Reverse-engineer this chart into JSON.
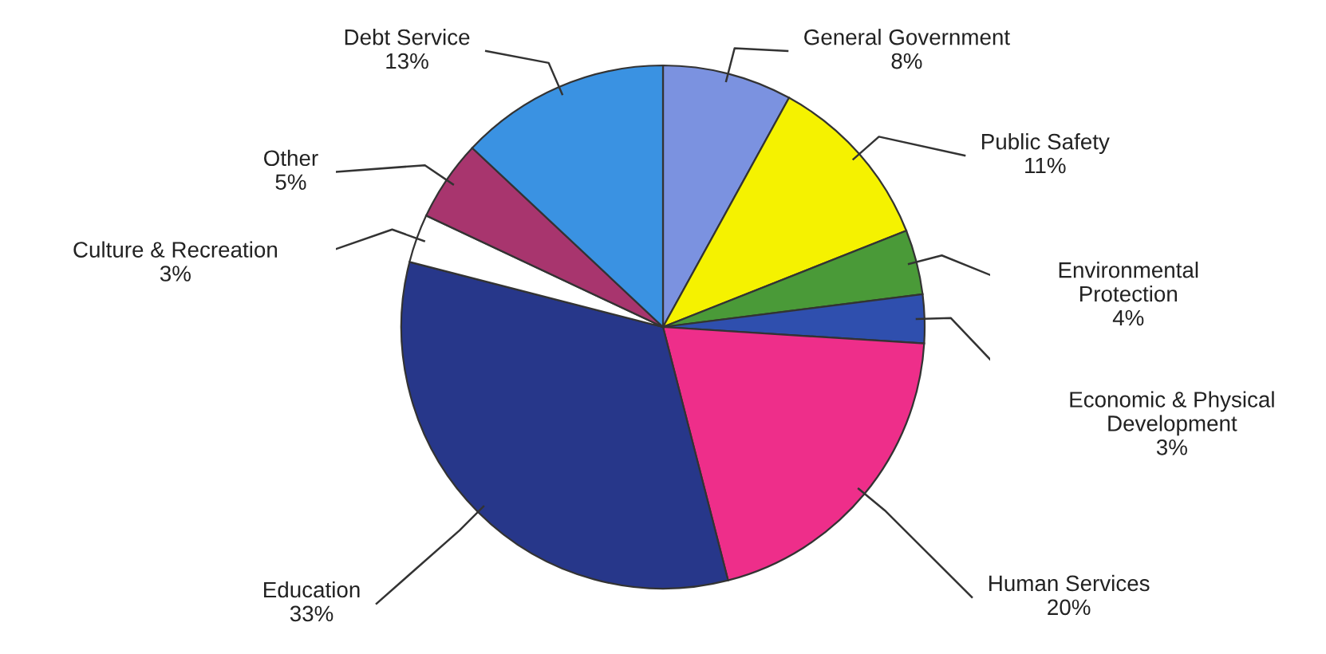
{
  "chart_data": {
    "type": "pie",
    "categories": [
      "General Government",
      "Public Safety",
      "Environmental Protection",
      "Economic & Physical Development",
      "Human Services",
      "Education",
      "Culture & Recreation",
      "Other",
      "Debt Service"
    ],
    "values": [
      8,
      11,
      4,
      3,
      20,
      33,
      3,
      5,
      13
    ],
    "value_labels": [
      "8%",
      "11%",
      "4%",
      "3%",
      "20%",
      "33%",
      "3%",
      "5%",
      "13%"
    ],
    "colors": [
      "#7b92e0",
      "#f5f200",
      "#4a9a38",
      "#2f4fae",
      "#ee2e8a",
      "#27378a",
      "#ffffff",
      "#a8356e",
      "#3a92e2"
    ]
  }
}
